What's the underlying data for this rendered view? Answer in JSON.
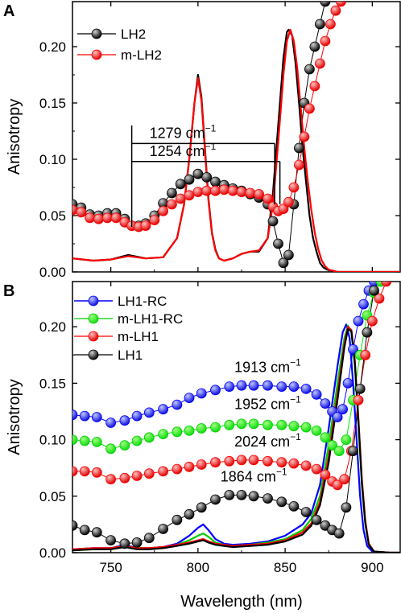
{
  "figure": {
    "xlabel": "Wavelength (nm)",
    "x_ticks": [
      750,
      800,
      850,
      900
    ]
  },
  "chart_data": [
    {
      "panel": "A",
      "type": "line",
      "ylabel": "Anisotropy",
      "xlim": [
        728,
        916
      ],
      "ylim": [
        0,
        0.24
      ],
      "y_ticks": [
        0.0,
        0.05,
        0.1,
        0.15,
        0.2
      ],
      "y_tick_labels": [
        "0.00",
        "0.05",
        "0.10",
        "0.15",
        "0.20"
      ],
      "legend": {
        "placement": "top-left",
        "entries": [
          "LH2",
          "m-LH2"
        ]
      },
      "series": [
        {
          "name": "LH2",
          "color": "#000000",
          "role": "markers",
          "x": [
            728,
            733,
            738,
            743,
            748,
            753,
            758,
            762,
            766,
            770,
            775,
            780,
            785,
            790,
            795,
            800,
            805,
            810,
            815,
            820,
            825,
            830,
            835,
            840,
            843,
            846,
            849,
            852,
            855,
            858,
            861,
            864,
            867,
            870,
            873
          ],
          "y": [
            0.06,
            0.057,
            0.051,
            0.05,
            0.052,
            0.052,
            0.047,
            0.041,
            0.041,
            0.043,
            0.05,
            0.061,
            0.07,
            0.078,
            0.082,
            0.087,
            0.084,
            0.08,
            0.077,
            0.074,
            0.072,
            0.069,
            0.066,
            0.06,
            0.045,
            0.025,
            0.008,
            0.015,
            0.06,
            0.11,
            0.15,
            0.18,
            0.2,
            0.22,
            0.24
          ]
        },
        {
          "name": "LH2",
          "color": "#000000",
          "role": "line",
          "x": [
            728,
            740,
            750,
            760,
            770,
            780,
            788,
            792,
            795,
            798,
            800,
            802,
            804,
            806,
            808,
            810,
            812,
            815,
            820,
            825,
            830,
            835,
            840,
            843,
            846,
            849,
            851,
            852,
            854,
            856,
            858,
            860,
            862,
            864,
            866,
            868,
            870,
            872,
            874,
            880,
            890,
            900,
            916
          ],
          "y": [
            0.012,
            0.01,
            0.011,
            0.015,
            0.012,
            0.013,
            0.03,
            0.06,
            0.1,
            0.15,
            0.175,
            0.155,
            0.11,
            0.065,
            0.035,
            0.02,
            0.012,
            0.01,
            0.012,
            0.016,
            0.018,
            0.018,
            0.03,
            0.07,
            0.13,
            0.19,
            0.213,
            0.215,
            0.21,
            0.185,
            0.15,
            0.11,
            0.08,
            0.05,
            0.03,
            0.018,
            0.008,
            0.004,
            0.002,
            0.0,
            0.0,
            0.0,
            0.0
          ]
        },
        {
          "name": "m-LH2",
          "color": "#ff0000",
          "role": "markers",
          "x": [
            728,
            733,
            738,
            743,
            748,
            753,
            758,
            762,
            766,
            770,
            775,
            780,
            785,
            790,
            795,
            800,
            805,
            810,
            815,
            820,
            825,
            830,
            835,
            840,
            843,
            846,
            849,
            852,
            855,
            858,
            861,
            864,
            867,
            870,
            873,
            876,
            879,
            882
          ],
          "y": [
            0.055,
            0.053,
            0.048,
            0.047,
            0.048,
            0.048,
            0.044,
            0.041,
            0.04,
            0.041,
            0.046,
            0.054,
            0.06,
            0.065,
            0.068,
            0.071,
            0.072,
            0.072,
            0.073,
            0.072,
            0.071,
            0.07,
            0.069,
            0.065,
            0.058,
            0.054,
            0.056,
            0.062,
            0.075,
            0.095,
            0.12,
            0.145,
            0.165,
            0.185,
            0.205,
            0.22,
            0.232,
            0.24
          ]
        },
        {
          "name": "m-LH2",
          "color": "#ff0000",
          "role": "line",
          "x": [
            728,
            740,
            750,
            760,
            770,
            780,
            788,
            792,
            795,
            798,
            800,
            802,
            804,
            806,
            808,
            810,
            812,
            815,
            820,
            825,
            830,
            835,
            840,
            843,
            846,
            849,
            851,
            853,
            855,
            857,
            859,
            861,
            863,
            865,
            867,
            869,
            871,
            873,
            875,
            880,
            890,
            900,
            916
          ],
          "y": [
            0.012,
            0.01,
            0.011,
            0.014,
            0.012,
            0.013,
            0.03,
            0.06,
            0.1,
            0.15,
            0.172,
            0.152,
            0.108,
            0.063,
            0.034,
            0.019,
            0.012,
            0.01,
            0.012,
            0.016,
            0.018,
            0.019,
            0.03,
            0.06,
            0.115,
            0.175,
            0.205,
            0.215,
            0.205,
            0.18,
            0.145,
            0.11,
            0.08,
            0.055,
            0.035,
            0.02,
            0.01,
            0.005,
            0.002,
            0.0,
            0.0,
            0.0,
            0.0
          ]
        }
      ],
      "annotations": [
        {
          "text": "1279",
          "unit": "cm",
          "sup": "−1",
          "x1": 762,
          "x2": 844,
          "y": 0.114
        },
        {
          "text": "1254",
          "unit": "cm",
          "sup": "−1",
          "x1": 762,
          "x2": 847,
          "y": 0.098
        }
      ]
    },
    {
      "panel": "B",
      "type": "line",
      "ylabel": "Anisotropy",
      "xlim": [
        728,
        916
      ],
      "ylim": [
        0,
        0.24
      ],
      "y_ticks": [
        0.0,
        0.05,
        0.1,
        0.15,
        0.2
      ],
      "y_tick_labels": [
        "0.00",
        "0.05",
        "0.10",
        "0.15",
        "0.20"
      ],
      "legend": {
        "placement": "top-left",
        "entries": [
          "LH1-RC",
          "m-LH1-RC",
          "m-LH1",
          "LH1"
        ]
      },
      "series": [
        {
          "name": "LH1-RC",
          "color": "#0000ff",
          "role": "markers",
          "x": [
            728,
            735,
            742,
            750,
            758,
            765,
            772,
            780,
            788,
            795,
            802,
            810,
            818,
            825,
            832,
            840,
            848,
            855,
            862,
            868,
            873,
            877,
            880,
            883,
            886,
            889,
            892,
            895,
            898,
            901
          ],
          "y": [
            0.122,
            0.121,
            0.12,
            0.115,
            0.117,
            0.121,
            0.124,
            0.127,
            0.131,
            0.137,
            0.141,
            0.144,
            0.147,
            0.148,
            0.148,
            0.148,
            0.147,
            0.147,
            0.145,
            0.14,
            0.132,
            0.125,
            0.12,
            0.127,
            0.15,
            0.18,
            0.205,
            0.22,
            0.232,
            0.24
          ]
        },
        {
          "name": "m-LH1-RC",
          "color": "#00ee00",
          "role": "markers",
          "x": [
            728,
            735,
            742,
            750,
            758,
            765,
            772,
            780,
            788,
            795,
            802,
            810,
            818,
            825,
            832,
            840,
            848,
            855,
            862,
            868,
            873,
            877,
            881,
            885,
            889,
            893,
            897,
            901,
            905
          ],
          "y": [
            0.1,
            0.099,
            0.098,
            0.092,
            0.095,
            0.099,
            0.102,
            0.105,
            0.107,
            0.108,
            0.11,
            0.111,
            0.113,
            0.114,
            0.114,
            0.113,
            0.113,
            0.112,
            0.111,
            0.108,
            0.102,
            0.095,
            0.09,
            0.1,
            0.135,
            0.175,
            0.21,
            0.23,
            0.24
          ]
        },
        {
          "name": "m-LH1",
          "color": "#ff0000",
          "role": "markers",
          "x": [
            728,
            735,
            742,
            750,
            758,
            765,
            772,
            780,
            788,
            795,
            802,
            810,
            818,
            825,
            832,
            840,
            848,
            855,
            862,
            868,
            873,
            877,
            880,
            884,
            888,
            892,
            896,
            900,
            904,
            908
          ],
          "y": [
            0.072,
            0.072,
            0.071,
            0.065,
            0.066,
            0.068,
            0.07,
            0.072,
            0.074,
            0.076,
            0.078,
            0.08,
            0.081,
            0.082,
            0.082,
            0.081,
            0.08,
            0.079,
            0.077,
            0.074,
            0.069,
            0.063,
            0.06,
            0.065,
            0.09,
            0.135,
            0.175,
            0.205,
            0.225,
            0.24
          ]
        },
        {
          "name": "LH1",
          "color": "#000000",
          "role": "markers",
          "x": [
            728,
            735,
            742,
            750,
            758,
            765,
            772,
            780,
            788,
            795,
            802,
            810,
            818,
            825,
            832,
            840,
            848,
            855,
            862,
            868,
            873,
            877,
            881,
            885,
            889,
            893,
            897,
            901
          ],
          "y": [
            0.024,
            0.02,
            0.018,
            0.011,
            0.008,
            0.009,
            0.013,
            0.021,
            0.029,
            0.034,
            0.04,
            0.047,
            0.051,
            0.051,
            0.05,
            0.048,
            0.045,
            0.041,
            0.036,
            0.029,
            0.024,
            0.02,
            0.017,
            0.04,
            0.09,
            0.145,
            0.195,
            0.232
          ]
        },
        {
          "name": "LH1-RC",
          "color": "#0000ff",
          "role": "line",
          "x": [
            728,
            740,
            750,
            758,
            765,
            772,
            780,
            788,
            795,
            800,
            803,
            806,
            810,
            815,
            820,
            830,
            840,
            850,
            860,
            865,
            870,
            875,
            880,
            883,
            885,
            887,
            889,
            891,
            893,
            895,
            897,
            900,
            910,
            916
          ],
          "y": [
            0.003,
            0.004,
            0.004,
            0.007,
            0.004,
            0.004,
            0.005,
            0.008,
            0.015,
            0.022,
            0.025,
            0.02,
            0.012,
            0.008,
            0.007,
            0.008,
            0.01,
            0.015,
            0.025,
            0.035,
            0.06,
            0.11,
            0.165,
            0.195,
            0.202,
            0.19,
            0.15,
            0.1,
            0.05,
            0.02,
            0.006,
            0.001,
            0.0,
            0.0
          ]
        },
        {
          "name": "m-LH1-RC",
          "color": "#00cc00",
          "role": "line",
          "x": [
            728,
            740,
            750,
            758,
            765,
            772,
            780,
            788,
            795,
            800,
            803,
            806,
            810,
            815,
            820,
            830,
            840,
            850,
            860,
            865,
            870,
            875,
            880,
            884,
            886,
            888,
            890,
            892,
            894,
            896,
            898,
            901,
            910,
            916
          ],
          "y": [
            0.002,
            0.003,
            0.004,
            0.006,
            0.004,
            0.004,
            0.005,
            0.007,
            0.011,
            0.015,
            0.017,
            0.014,
            0.009,
            0.007,
            0.006,
            0.007,
            0.009,
            0.012,
            0.02,
            0.03,
            0.05,
            0.095,
            0.15,
            0.19,
            0.201,
            0.195,
            0.165,
            0.115,
            0.06,
            0.025,
            0.008,
            0.001,
            0.0,
            0.0
          ]
        },
        {
          "name": "m-LH1",
          "color": "#ff0000",
          "role": "line",
          "x": [
            728,
            740,
            750,
            758,
            765,
            772,
            780,
            788,
            795,
            800,
            803,
            806,
            810,
            815,
            820,
            830,
            840,
            850,
            860,
            865,
            870,
            875,
            880,
            884,
            886,
            888,
            890,
            892,
            894,
            896,
            898,
            901,
            910,
            916
          ],
          "y": [
            0.003,
            0.004,
            0.004,
            0.006,
            0.004,
            0.004,
            0.005,
            0.007,
            0.009,
            0.011,
            0.012,
            0.01,
            0.008,
            0.007,
            0.006,
            0.007,
            0.008,
            0.011,
            0.018,
            0.026,
            0.045,
            0.085,
            0.14,
            0.185,
            0.2,
            0.197,
            0.17,
            0.12,
            0.065,
            0.028,
            0.008,
            0.001,
            0.0,
            0.0
          ]
        },
        {
          "name": "LH1",
          "color": "#000000",
          "role": "line",
          "x": [
            728,
            740,
            750,
            758,
            765,
            772,
            780,
            788,
            795,
            800,
            803,
            806,
            810,
            815,
            820,
            830,
            840,
            850,
            860,
            865,
            870,
            875,
            880,
            884,
            886,
            888,
            890,
            892,
            894,
            896,
            898,
            901,
            910,
            916
          ],
          "y": [
            0.002,
            0.003,
            0.003,
            0.005,
            0.003,
            0.003,
            0.004,
            0.006,
            0.008,
            0.01,
            0.011,
            0.009,
            0.007,
            0.006,
            0.005,
            0.006,
            0.007,
            0.01,
            0.016,
            0.024,
            0.042,
            0.08,
            0.135,
            0.182,
            0.198,
            0.196,
            0.168,
            0.118,
            0.062,
            0.026,
            0.007,
            0.001,
            0.0,
            0.0
          ]
        }
      ],
      "annotations": [
        {
          "text": "1913",
          "unit": "cm",
          "sup": "−1",
          "x": 840,
          "y": 0.16
        },
        {
          "text": "1952",
          "unit": "cm",
          "sup": "−1",
          "x": 840,
          "y": 0.127
        },
        {
          "text": "2024",
          "unit": "cm",
          "sup": "−1",
          "x": 840,
          "y": 0.094
        },
        {
          "text": "1864",
          "unit": "cm",
          "sup": "−1",
          "x": 832,
          "y": 0.063
        }
      ]
    }
  ]
}
